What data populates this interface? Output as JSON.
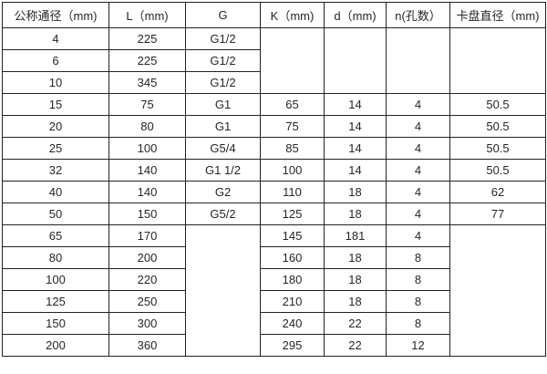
{
  "table": {
    "title": "dimension-specification-table",
    "headers": [
      "公称通径（mm)",
      "L（mm)",
      "G",
      "K（mm)",
      "d（mm)",
      "n(孔数）",
      "卡盘直径（mm)"
    ],
    "rows": [
      [
        {
          "t": "4"
        },
        {
          "t": "225"
        },
        {
          "t": "G1/2"
        },
        {
          "t": "",
          "rs": 3
        },
        {
          "t": "",
          "rs": 3
        },
        {
          "t": "",
          "rs": 3
        },
        {
          "t": "",
          "rs": 3
        }
      ],
      [
        {
          "t": "6"
        },
        {
          "t": "225"
        },
        {
          "t": "G1/2"
        }
      ],
      [
        {
          "t": "10"
        },
        {
          "t": "345"
        },
        {
          "t": "G1/2"
        }
      ],
      [
        {
          "t": "15"
        },
        {
          "t": "75"
        },
        {
          "t": "G1"
        },
        {
          "t": "65"
        },
        {
          "t": "14"
        },
        {
          "t": "4"
        },
        {
          "t": "50.5"
        }
      ],
      [
        {
          "t": "20"
        },
        {
          "t": "80"
        },
        {
          "t": "G1"
        },
        {
          "t": "75"
        },
        {
          "t": "14"
        },
        {
          "t": "4"
        },
        {
          "t": "50.5"
        }
      ],
      [
        {
          "t": "25"
        },
        {
          "t": "100"
        },
        {
          "t": "G5/4"
        },
        {
          "t": "85"
        },
        {
          "t": "14"
        },
        {
          "t": "4"
        },
        {
          "t": "50.5"
        }
      ],
      [
        {
          "t": "32"
        },
        {
          "t": "140"
        },
        {
          "t": "G1 1/2"
        },
        {
          "t": "100"
        },
        {
          "t": "14"
        },
        {
          "t": "4"
        },
        {
          "t": "50.5"
        }
      ],
      [
        {
          "t": "40"
        },
        {
          "t": "140"
        },
        {
          "t": "G2"
        },
        {
          "t": "110"
        },
        {
          "t": "18"
        },
        {
          "t": "4"
        },
        {
          "t": "62"
        }
      ],
      [
        {
          "t": "50"
        },
        {
          "t": "150"
        },
        {
          "t": "G5/2"
        },
        {
          "t": "125"
        },
        {
          "t": "18"
        },
        {
          "t": "4"
        },
        {
          "t": "77"
        }
      ],
      [
        {
          "t": "65"
        },
        {
          "t": "170"
        },
        {
          "t": "",
          "rs": 6
        },
        {
          "t": "145"
        },
        {
          "t": "181"
        },
        {
          "t": "4"
        },
        {
          "t": "",
          "rs": 6
        }
      ],
      [
        {
          "t": "80"
        },
        {
          "t": "200"
        },
        {
          "t": "160"
        },
        {
          "t": "18"
        },
        {
          "t": "8"
        }
      ],
      [
        {
          "t": "100"
        },
        {
          "t": "220"
        },
        {
          "t": "180"
        },
        {
          "t": "18"
        },
        {
          "t": "8"
        }
      ],
      [
        {
          "t": "125"
        },
        {
          "t": "250"
        },
        {
          "t": "210"
        },
        {
          "t": "18"
        },
        {
          "t": "8"
        }
      ],
      [
        {
          "t": "150"
        },
        {
          "t": "300"
        },
        {
          "t": "240"
        },
        {
          "t": "22"
        },
        {
          "t": "8"
        }
      ],
      [
        {
          "t": "200"
        },
        {
          "t": "360"
        },
        {
          "t": "295"
        },
        {
          "t": "22"
        },
        {
          "t": "12"
        }
      ]
    ],
    "col_count": 7
  },
  "colors": {
    "border": "#222222",
    "text": "#262626",
    "background": "#ffffff"
  }
}
